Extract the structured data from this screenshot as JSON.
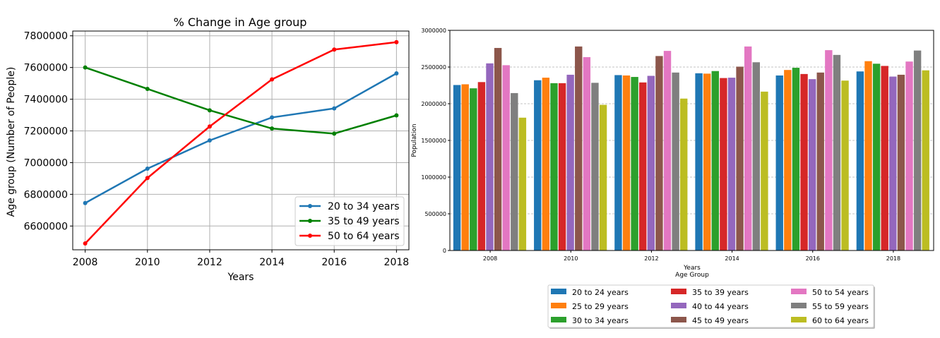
{
  "chart_data": [
    {
      "type": "line",
      "title": "% Change in Age group",
      "xlabel": "Years",
      "ylabel": "Age group (Number of People)",
      "x": [
        2008,
        2010,
        2012,
        2014,
        2016,
        2018
      ],
      "xticks": [
        "2008",
        "2010",
        "2012",
        "2014",
        "2016",
        "2018"
      ],
      "yticks": [
        "6600000",
        "6800000",
        "7000000",
        "7200000",
        "7400000",
        "7600000",
        "7800000"
      ],
      "ylim": [
        6450000,
        7830000
      ],
      "grid": true,
      "legend_position": "lower-right",
      "series": [
        {
          "name": "20 to 34 years",
          "color": "#1f77b4",
          "values": [
            6745000,
            6962000,
            7140000,
            7285000,
            7342000,
            7563000
          ]
        },
        {
          "name": "35 to 49 years",
          "color": "#008000",
          "values": [
            7600000,
            7465000,
            7330000,
            7215000,
            7183000,
            7298000
          ]
        },
        {
          "name": "50 to 64 years",
          "color": "#ff0000",
          "values": [
            6490000,
            6903000,
            7228000,
            7525000,
            7713000,
            7760000
          ]
        }
      ]
    },
    {
      "type": "bar",
      "title": "",
      "xlabel": "Years",
      "xlabel2": "Age Group",
      "ylabel": "Population",
      "categories": [
        "2008",
        "2010",
        "2012",
        "2014",
        "2016",
        "2018"
      ],
      "yticks": [
        "0",
        "500000",
        "1000000",
        "1500000",
        "2000000",
        "2500000",
        "3000000"
      ],
      "ylim": [
        0,
        3000000
      ],
      "grid": "y-dashed",
      "legend_position": "below",
      "series": [
        {
          "name": "20 to 24 years",
          "color": "#1f77b4",
          "values": [
            2255000,
            2320000,
            2390000,
            2415000,
            2385000,
            2440000
          ]
        },
        {
          "name": "25 to 29 years",
          "color": "#ff7f0e",
          "values": [
            2265000,
            2355000,
            2385000,
            2410000,
            2460000,
            2580000
          ]
        },
        {
          "name": "30 to 34 years",
          "color": "#2ca02c",
          "values": [
            2210000,
            2280000,
            2365000,
            2445000,
            2490000,
            2545000
          ]
        },
        {
          "name": "35 to 39 years",
          "color": "#d62728",
          "values": [
            2295000,
            2280000,
            2290000,
            2350000,
            2405000,
            2515000
          ]
        },
        {
          "name": "40 to 44 years",
          "color": "#9467bd",
          "values": [
            2550000,
            2395000,
            2380000,
            2355000,
            2335000,
            2370000
          ]
        },
        {
          "name": "45 to 49 years",
          "color": "#8c564b",
          "values": [
            2760000,
            2780000,
            2650000,
            2505000,
            2425000,
            2395000
          ]
        },
        {
          "name": "50 to 54 years",
          "color": "#e377c2",
          "values": [
            2525000,
            2635000,
            2720000,
            2780000,
            2730000,
            2575000
          ]
        },
        {
          "name": "55 to 59 years",
          "color": "#7f7f7f",
          "values": [
            2145000,
            2285000,
            2425000,
            2565000,
            2665000,
            2725000
          ]
        },
        {
          "name": "60 to 64 years",
          "color": "#bcbd22",
          "values": [
            1810000,
            1985000,
            2070000,
            2165000,
            2315000,
            2455000
          ]
        }
      ]
    }
  ]
}
